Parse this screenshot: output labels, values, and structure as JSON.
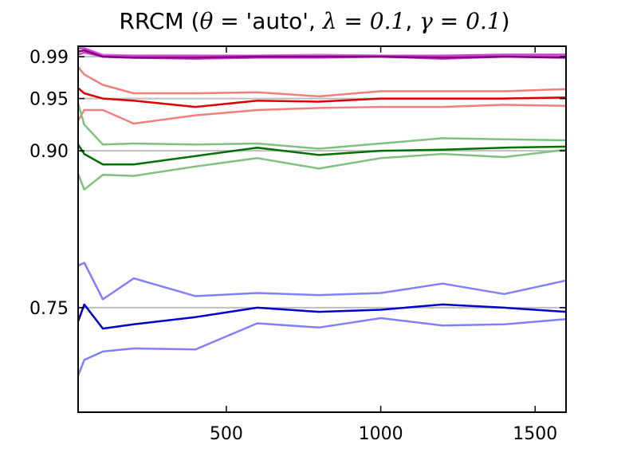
{
  "chart_data": {
    "type": "line",
    "title": "RRCM (θ = 'auto', λ = 0.1, γ = 0.1)",
    "xlabel": "",
    "ylabel": "",
    "xlim": [
      20,
      1600
    ],
    "ylim": [
      0.65,
      1.0
    ],
    "x_ticks": [
      500,
      1000,
      1500
    ],
    "y_ticks": [
      0.75,
      0.9,
      0.95,
      0.99
    ],
    "y_tick_labels": [
      "0.75",
      "0.90",
      "0.95",
      "0.99"
    ],
    "grid": "horizontal reference lines at target levels",
    "x": [
      20,
      40,
      100,
      200,
      400,
      600,
      800,
      1000,
      1200,
      1400,
      1600
    ],
    "reference_lines": [
      {
        "y": 0.99,
        "color": "#bfbfbf"
      },
      {
        "y": 0.95,
        "color": "#bfbfbf"
      },
      {
        "y": 0.9,
        "color": "#bfbfbf"
      },
      {
        "y": 0.75,
        "color": "#bfbfbf"
      }
    ],
    "series": [
      {
        "color": "#e099e0",
        "width": 2.5,
        "values": [
          0.998,
          0.998,
          0.992,
          0.991,
          0.99,
          0.991,
          0.992,
          0.991,
          0.991,
          0.991,
          0.991
        ]
      },
      {
        "color": "#cc44cc",
        "width": 2.5,
        "values": [
          0.998,
          0.998,
          0.991,
          0.991,
          0.991,
          0.991,
          0.991,
          0.991,
          0.991,
          0.992,
          0.992
        ]
      },
      {
        "color": "#cc44cc",
        "width": 2.5,
        "values": [
          0.992,
          0.994,
          0.99,
          0.989,
          0.988,
          0.989,
          0.989,
          0.99,
          0.988,
          0.99,
          0.99
        ]
      },
      {
        "color": "#800080",
        "width": 2.5,
        "values": [
          0.995,
          0.996,
          0.99,
          0.989,
          0.989,
          0.99,
          0.99,
          0.99,
          0.989,
          0.99,
          0.989
        ]
      },
      {
        "color": "#f08080",
        "width": 2.5,
        "values": [
          0.98,
          0.973,
          0.963,
          0.955,
          0.955,
          0.956,
          0.952,
          0.957,
          0.957,
          0.957,
          0.959
        ]
      },
      {
        "color": "#f08080",
        "width": 2.5,
        "values": [
          0.929,
          0.939,
          0.939,
          0.926,
          0.934,
          0.939,
          0.941,
          0.942,
          0.942,
          0.944,
          0.943
        ]
      },
      {
        "color": "#dd0000",
        "width": 2.5,
        "values": [
          0.96,
          0.955,
          0.95,
          0.948,
          0.942,
          0.948,
          0.947,
          0.95,
          0.95,
          0.95,
          0.951
        ]
      },
      {
        "color": "#80c080",
        "width": 2.5,
        "values": [
          0.945,
          0.925,
          0.906,
          0.907,
          0.906,
          0.907,
          0.902,
          0.907,
          0.912,
          0.911,
          0.91
        ]
      },
      {
        "color": "#80c080",
        "width": 2.5,
        "values": [
          0.878,
          0.863,
          0.877,
          0.876,
          0.885,
          0.893,
          0.883,
          0.893,
          0.897,
          0.894,
          0.901
        ]
      },
      {
        "color": "#007000",
        "width": 2.5,
        "values": [
          0.906,
          0.897,
          0.887,
          0.887,
          0.895,
          0.903,
          0.896,
          0.9,
          0.901,
          0.903,
          0.904
        ]
      },
      {
        "color": "#8080ff",
        "width": 2.5,
        "values": [
          0.79,
          0.793,
          0.758,
          0.778,
          0.761,
          0.764,
          0.762,
          0.764,
          0.773,
          0.763,
          0.776
        ]
      },
      {
        "color": "#8080ff",
        "width": 2.5,
        "values": [
          0.685,
          0.7,
          0.708,
          0.711,
          0.71,
          0.735,
          0.731,
          0.74,
          0.733,
          0.734,
          0.739
        ]
      },
      {
        "color": "#0000cc",
        "width": 2.5,
        "values": [
          0.737,
          0.753,
          0.73,
          0.734,
          0.741,
          0.75,
          0.746,
          0.748,
          0.753,
          0.75,
          0.746
        ]
      }
    ]
  }
}
